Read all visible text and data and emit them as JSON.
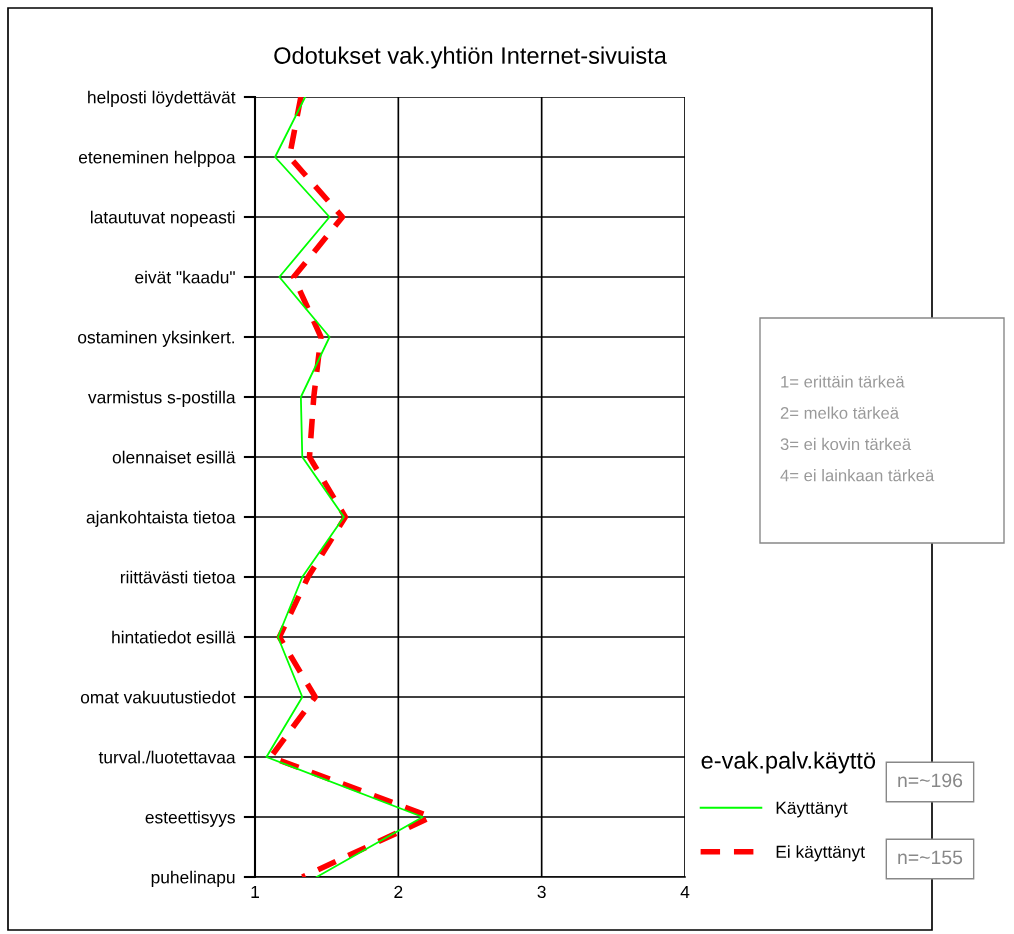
{
  "chart_data": {
    "type": "line",
    "orientation": "horizontal",
    "title": "Odotukset vak.yhtiön Internet-sivuista",
    "categories": [
      "helposti löydettävät",
      "eteneminen helppoa",
      "latautuvat nopeasti",
      "eivät \"kaadu\"",
      "ostaminen yksinkert.",
      "varmistus s-postilla",
      "olennaiset esillä",
      "ajankohtaista tietoa",
      "riittävästi tietoa",
      "hintatiedot esillä",
      "omat vakuutustiedot",
      "turval./luotettavaa",
      "esteettisyys",
      "puhelinapu"
    ],
    "series": [
      {
        "name": "Käyttänyt",
        "color": "#00ff00",
        "line_style": "solid",
        "values": [
          1.35,
          1.14,
          1.52,
          1.17,
          1.52,
          1.32,
          1.33,
          1.62,
          1.33,
          1.16,
          1.33,
          1.08,
          2.17,
          1.43
        ]
      },
      {
        "name": "Ei käyttänyt",
        "color": "#ff0000",
        "line_style": "dashed",
        "values": [
          1.32,
          1.24,
          1.61,
          1.27,
          1.46,
          1.41,
          1.38,
          1.63,
          1.37,
          1.17,
          1.42,
          1.11,
          2.23,
          1.33
        ]
      }
    ],
    "xlim": [
      1,
      4
    ],
    "xticks": [
      1,
      2,
      3,
      4
    ],
    "grid": true,
    "marker": "none",
    "legend": "bottom right",
    "legend_title": "e-vak.palv.käyttö",
    "annotations": [
      "1= erittäin tärkeä\n2= melko tärkeä\n3= ei kovin tärkeä\n4= ei lainkaan tärkeä",
      "n=~196",
      "n=~155"
    ]
  }
}
